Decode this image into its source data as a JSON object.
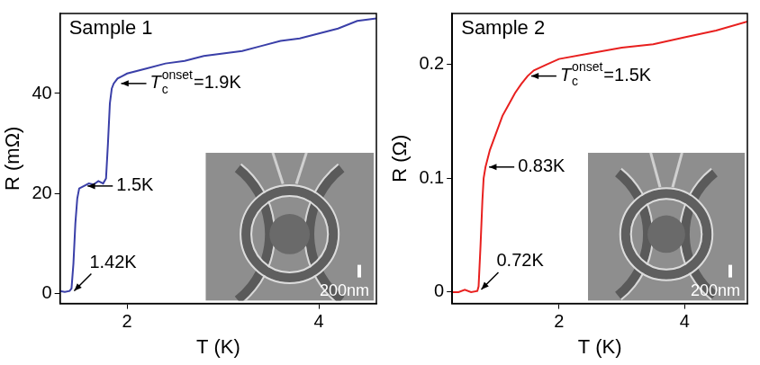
{
  "chart_data": [
    {
      "type": "line",
      "title": "Sample 1",
      "x_label": "T (K)",
      "y_label": "R (mΩ)",
      "x": [
        1.3,
        1.35,
        1.4,
        1.42,
        1.44,
        1.46,
        1.48,
        1.5,
        1.55,
        1.6,
        1.65,
        1.7,
        1.75,
        1.78,
        1.8,
        1.82,
        1.84,
        1.86,
        1.88,
        1.9,
        1.95,
        2.0,
        2.2,
        2.4,
        2.6,
        2.8,
        3.0,
        3.2,
        3.4,
        3.6,
        3.8,
        4.0,
        4.2,
        4.4,
        4.6
      ],
      "values": [
        0.5,
        0.3,
        0.5,
        1,
        6,
        14,
        19,
        21,
        21.5,
        22,
        21.8,
        22.5,
        22,
        23,
        30,
        38,
        41,
        42,
        42.5,
        43,
        43.5,
        44,
        45,
        46,
        46.5,
        47.5,
        48,
        48.5,
        49.5,
        50.5,
        51,
        52,
        53,
        54.5,
        55
      ],
      "color": "#3a3fa8",
      "xlim": [
        1.3,
        4.6
      ],
      "xticks": [
        2,
        4
      ],
      "ylim": [
        -2,
        56
      ],
      "yticks": [
        0,
        20,
        40
      ],
      "grid": false,
      "annotations": [
        {
          "symbol": "T",
          "subscript": "c",
          "superscript": "onset",
          "text": "=1.9K",
          "x": 1.9,
          "y": 42
        },
        {
          "text": "1.5K",
          "x": 1.55,
          "y": 21.5
        },
        {
          "text": "1.42K",
          "x": 1.42,
          "y": 0
        }
      ],
      "inset": {
        "scale_bar": "200nm"
      }
    },
    {
      "type": "line",
      "title": "Sample 2",
      "x_label": "T (K)",
      "y_label": "R (Ω)",
      "x": [
        0.3,
        0.4,
        0.5,
        0.6,
        0.7,
        0.72,
        0.75,
        0.78,
        0.8,
        0.83,
        0.9,
        1.0,
        1.1,
        1.2,
        1.3,
        1.4,
        1.5,
        1.6,
        1.8,
        2.0,
        2.5,
        3.0,
        3.5,
        4.0,
        4.5,
        5.0
      ],
      "values": [
        0,
        0,
        0.002,
        0,
        0.001,
        0.005,
        0.04,
        0.08,
        0.1,
        0.11,
        0.125,
        0.14,
        0.155,
        0.165,
        0.175,
        0.183,
        0.19,
        0.195,
        0.2,
        0.205,
        0.21,
        0.215,
        0.218,
        0.224,
        0.23,
        0.238
      ],
      "color": "#e8201f",
      "xlim": [
        0.3,
        5
      ],
      "xticks": [
        2,
        4
      ],
      "ylim": [
        -0.01,
        0.245
      ],
      "yticks": [
        0,
        0.1,
        0.2
      ],
      "grid": false,
      "annotations": [
        {
          "symbol": "T",
          "subscript": "c",
          "superscript": "onset",
          "text": "=1.5K",
          "x": 1.5,
          "y": 0.19
        },
        {
          "text": "0.83K",
          "x": 0.83,
          "y": 0.11
        },
        {
          "text": "0.72K",
          "x": 0.72,
          "y": 0
        }
      ],
      "inset": {
        "scale_bar": "200nm"
      }
    }
  ]
}
